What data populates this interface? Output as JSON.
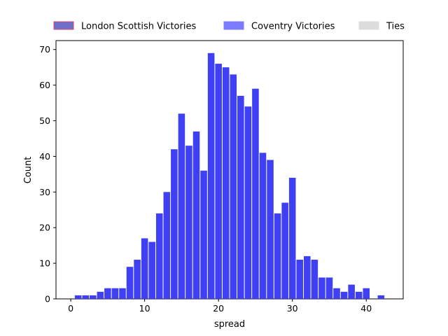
{
  "chart_data": {
    "type": "bar",
    "xlabel": "spread",
    "ylabel": "Count",
    "xlim": [
      -2,
      45
    ],
    "ylim": [
      0,
      72.5
    ],
    "xticks": [
      0,
      10,
      20,
      30,
      40
    ],
    "yticks": [
      0,
      10,
      20,
      30,
      40,
      50,
      60,
      70
    ],
    "grid": false,
    "legend_placement": "top, above plot",
    "legend": [
      {
        "label": "London Scottish Victories",
        "color": "#6e6ec8",
        "edge": "#d64a6e"
      },
      {
        "label": "Coventry Victories",
        "color": "#7b7bff",
        "edge": "#7b7bff"
      },
      {
        "label": "Ties",
        "color": "#dcdcdc",
        "edge": "#dcdcdc"
      }
    ],
    "series": [
      {
        "name": "Coventry Victories",
        "color": "#3f3ff4",
        "bins": [
          [
            1,
            1
          ],
          [
            2,
            1
          ],
          [
            3,
            1
          ],
          [
            4,
            2
          ],
          [
            5,
            3
          ],
          [
            6,
            3
          ],
          [
            7,
            3
          ],
          [
            8,
            9
          ],
          [
            9,
            11
          ],
          [
            10,
            17
          ],
          [
            11,
            16
          ],
          [
            12,
            24
          ],
          [
            13,
            30
          ],
          [
            14,
            42
          ],
          [
            15,
            52
          ],
          [
            16,
            43
          ],
          [
            17,
            47
          ],
          [
            18,
            36
          ],
          [
            19,
            69
          ],
          [
            20,
            66
          ],
          [
            21,
            65
          ],
          [
            22,
            63
          ],
          [
            23,
            57
          ],
          [
            24,
            54
          ],
          [
            25,
            59
          ],
          [
            26,
            41
          ],
          [
            27,
            39
          ],
          [
            28,
            24
          ],
          [
            29,
            27
          ],
          [
            30,
            34
          ],
          [
            31,
            11
          ],
          [
            32,
            12
          ],
          [
            33,
            11
          ],
          [
            34,
            6
          ],
          [
            35,
            6
          ],
          [
            36,
            3
          ],
          [
            37,
            2
          ],
          [
            38,
            4
          ],
          [
            39,
            2
          ],
          [
            40,
            3
          ],
          [
            42,
            1
          ]
        ]
      }
    ]
  }
}
